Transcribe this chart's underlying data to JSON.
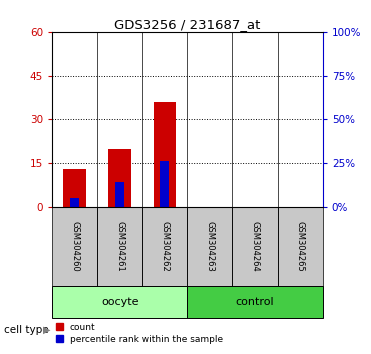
{
  "title": "GDS3256 / 231687_at",
  "samples": [
    "GSM304260",
    "GSM304261",
    "GSM304262",
    "GSM304263",
    "GSM304264",
    "GSM304265"
  ],
  "count_values": [
    13,
    20,
    36,
    0,
    0,
    0
  ],
  "percentile_values": [
    5,
    14,
    26,
    0,
    0,
    0
  ],
  "ylim_left": [
    0,
    60
  ],
  "ylim_right": [
    0,
    100
  ],
  "yticks_left": [
    0,
    15,
    30,
    45,
    60
  ],
  "yticks_right": [
    0,
    25,
    50,
    75,
    100
  ],
  "ytick_labels_left": [
    "0",
    "15",
    "30",
    "45",
    "60"
  ],
  "ytick_labels_right": [
    "0%",
    "25%",
    "50%",
    "75%",
    "100%"
  ],
  "groups": [
    {
      "label": "oocyte",
      "indices": [
        0,
        1,
        2
      ],
      "color": "#aaffaa"
    },
    {
      "label": "control",
      "indices": [
        3,
        4,
        5
      ],
      "color": "#44cc44"
    }
  ],
  "bar_width": 0.5,
  "count_color": "#CC0000",
  "percentile_color": "#0000CC",
  "grid_color": "#000000",
  "tick_bg_color": "#C8C8C8",
  "cell_type_label": "cell type",
  "legend_count": "count",
  "legend_percentile": "percentile rank within the sample",
  "left_tick_color": "#CC0000",
  "right_tick_color": "#0000CC",
  "fig_width": 3.71,
  "fig_height": 3.54,
  "dpi": 100
}
